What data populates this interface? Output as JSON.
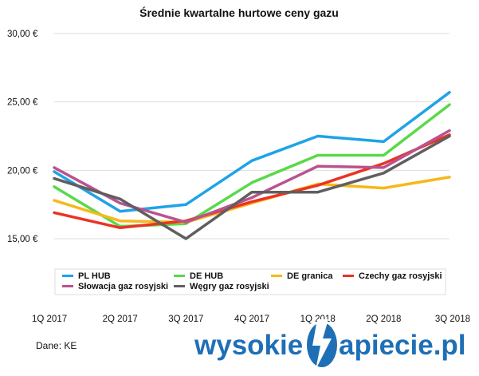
{
  "chart_data": {
    "type": "line",
    "title": "Średnie kwartalne hurtowe ceny gazu",
    "xlabel": "",
    "ylabel": "",
    "categories": [
      "1Q 2017",
      "2Q 2017",
      "3Q 2017",
      "4Q 2017",
      "1Q 2018",
      "2Q 2018",
      "3Q 2018"
    ],
    "y_ticks": [
      "30,00 €",
      "25,00 €",
      "20,00 €",
      "15,00 €"
    ],
    "ylim": [
      15,
      30
    ],
    "grid": true,
    "legend_position": "bottom",
    "series": [
      {
        "name": "PL HUB",
        "color": "#1fa3e8",
        "values": [
          19.9,
          17.0,
          17.5,
          20.7,
          22.5,
          22.1,
          25.7
        ]
      },
      {
        "name": "DE HUB",
        "color": "#5ad94a",
        "values": [
          18.8,
          15.9,
          16.1,
          19.1,
          21.1,
          21.1,
          24.8
        ]
      },
      {
        "name": "DE granica",
        "color": "#f6b91b",
        "values": [
          17.8,
          16.3,
          16.2,
          17.6,
          19.0,
          18.7,
          19.5
        ]
      },
      {
        "name": "Czechy gaz rosyjski",
        "color": "#ea3324",
        "values": [
          16.9,
          15.8,
          16.3,
          17.7,
          18.9,
          20.5,
          22.6
        ]
      },
      {
        "name": "Słowacja gaz rosyjski",
        "color": "#b9538f",
        "values": [
          20.2,
          17.6,
          16.2,
          18.0,
          20.3,
          20.2,
          22.9
        ]
      },
      {
        "name": "Węgry gaz rosyjski",
        "color": "#5f5f5f",
        "values": [
          19.4,
          17.9,
          15.0,
          18.4,
          18.4,
          19.8,
          22.5
        ]
      }
    ]
  },
  "source_label": "Dane: KE",
  "logo": {
    "part1": "wysokie",
    "part2": "apiecie.pl"
  },
  "colors": {
    "grid": "#dddddd",
    "logo": "#1f6fb6"
  }
}
